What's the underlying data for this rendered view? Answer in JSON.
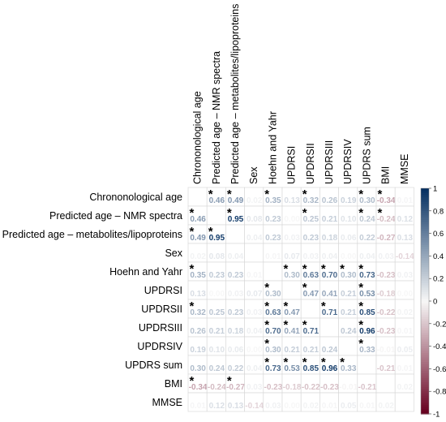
{
  "chart_data": {
    "type": "heatmap",
    "title": "",
    "variables": [
      "Chrononological age",
      "Predicted age – NMR spectra",
      "Predicted age – metabolites/lipoproteins",
      "Sex",
      "Hoehn and Yahr",
      "UPDRSI",
      "UPDRSII",
      "UPDRSIII",
      "UPDRSIV",
      "UPDRS sum",
      "BMI",
      "MMSE"
    ],
    "matrix": [
      [
        null,
        0.46,
        0.49,
        0.02,
        0.35,
        0.13,
        0.32,
        0.26,
        0.19,
        0.3,
        -0.34,
        0.01
      ],
      [
        0.46,
        null,
        0.95,
        0.08,
        0.23,
        0.0,
        0.25,
        0.21,
        0.1,
        0.24,
        -0.24,
        0.12
      ],
      [
        0.49,
        0.95,
        null,
        0.04,
        0.23,
        0.03,
        0.23,
        0.18,
        0.06,
        0.22,
        -0.27,
        0.13
      ],
      [
        0.02,
        0.08,
        0.04,
        null,
        0.01,
        0.07,
        0.03,
        0.04,
        0.0,
        0.04,
        0.03,
        -0.14
      ],
      [
        0.35,
        0.23,
        0.23,
        0.01,
        null,
        0.3,
        0.63,
        0.7,
        0.3,
        0.73,
        -0.23,
        0.03
      ],
      [
        0.13,
        0.0,
        0.03,
        0.07,
        0.3,
        null,
        0.47,
        0.41,
        0.21,
        0.53,
        -0.18,
        0.0
      ],
      [
        0.32,
        0.25,
        0.23,
        0.03,
        0.63,
        0.47,
        null,
        0.71,
        0.21,
        0.85,
        -0.22,
        0.02
      ],
      [
        0.26,
        0.21,
        0.18,
        0.04,
        0.7,
        0.41,
        0.71,
        null,
        0.24,
        0.96,
        -0.23,
        0.01
      ],
      [
        0.19,
        0.1,
        0.06,
        0.0,
        0.3,
        0.21,
        0.21,
        0.24,
        null,
        0.33,
        -0.01,
        0.05
      ],
      [
        0.3,
        0.24,
        0.22,
        0.04,
        0.73,
        0.53,
        0.85,
        0.96,
        0.33,
        null,
        -0.21,
        0.01
      ],
      [
        -0.34,
        -0.24,
        -0.27,
        0.03,
        -0.23,
        -0.18,
        -0.22,
        -0.23,
        -0.01,
        -0.21,
        null,
        0.02
      ],
      [
        0.01,
        0.12,
        0.13,
        -0.14,
        0.03,
        0.0,
        0.02,
        0.01,
        0.05,
        0.01,
        0.02,
        null
      ]
    ],
    "significant": [
      [
        0,
        1
      ],
      [
        0,
        2
      ],
      [
        0,
        4
      ],
      [
        0,
        6
      ],
      [
        0,
        9
      ],
      [
        0,
        10
      ],
      [
        1,
        0
      ],
      [
        1,
        2
      ],
      [
        1,
        6
      ],
      [
        1,
        9
      ],
      [
        1,
        10
      ],
      [
        2,
        0
      ],
      [
        2,
        1
      ],
      [
        4,
        0
      ],
      [
        4,
        5
      ],
      [
        4,
        6
      ],
      [
        4,
        7
      ],
      [
        4,
        8
      ],
      [
        4,
        9
      ],
      [
        5,
        4
      ],
      [
        5,
        6
      ],
      [
        5,
        9
      ],
      [
        6,
        0
      ],
      [
        6,
        4
      ],
      [
        6,
        5
      ],
      [
        6,
        7
      ],
      [
        6,
        9
      ],
      [
        7,
        4
      ],
      [
        7,
        5
      ],
      [
        7,
        6
      ],
      [
        7,
        9
      ],
      [
        8,
        4
      ],
      [
        8,
        9
      ],
      [
        9,
        4
      ],
      [
        9,
        5
      ],
      [
        9,
        6
      ],
      [
        9,
        7
      ],
      [
        9,
        8
      ],
      [
        10,
        0
      ],
      [
        10,
        2
      ]
    ],
    "colorbar": {
      "range": [
        -1,
        1
      ],
      "ticks": [
        "1",
        "0.8",
        "0.6",
        "0.4",
        "0.2",
        "0",
        "-0.2",
        "-0.4",
        "-0.6",
        "-0.8",
        "-1"
      ],
      "colors": {
        "negative": "#67001f",
        "mid": "#f7f7f7",
        "positive": "#053061"
      }
    },
    "grid": true,
    "legend_placement": "right"
  }
}
